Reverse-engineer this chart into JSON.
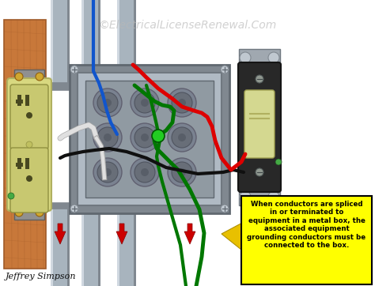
{
  "bg_color": "#ffffff",
  "watermark": "©ElectricalLicenseRenewal.Com",
  "watermark_color": "#b8b8b8",
  "watermark_fontsize": 10,
  "credit": "Jeffrey Simpson",
  "credit_fontsize": 8,
  "wood_color": "#c8783a",
  "wood_grain": "#a05a28",
  "conduit_hi": "#d0d8e0",
  "conduit_mid": "#a8b4be",
  "conduit_lo": "#808890",
  "box_outer": "#909aa4",
  "box_inner": "#7a8490",
  "box_face": "#b0bac4",
  "knockout_outer": "#808890",
  "knockout_inner": "#686e78",
  "outlet_plate": "#d8d880",
  "outlet_body": "#c8c870",
  "outlet_dark": "#484820",
  "outlet_screw_gold": "#c8a840",
  "switch_plate": "#a8b0b8",
  "switch_body": "#282828",
  "switch_lever": "#d4d890",
  "switch_screw": "#909890",
  "wire_red": "#dd0000",
  "wire_white": "#e0e0e0",
  "wire_white_outline": "#aaaaaa",
  "wire_black": "#101010",
  "wire_green": "#007700",
  "wire_blue": "#1155cc",
  "wire_lw": 3,
  "note_bg": "#ffff00",
  "note_border": "#000000",
  "note_text": "When conductors are spliced\nin or terminated to\nequipment in a metal box, the\nassociated equipment\ngrounding conductors must be\nconnected to the box.",
  "note_fontsize": 6.2,
  "arrow_yellow": "#e8c000",
  "red_arrow": "#cc0000",
  "green_screw": "#44aa44"
}
